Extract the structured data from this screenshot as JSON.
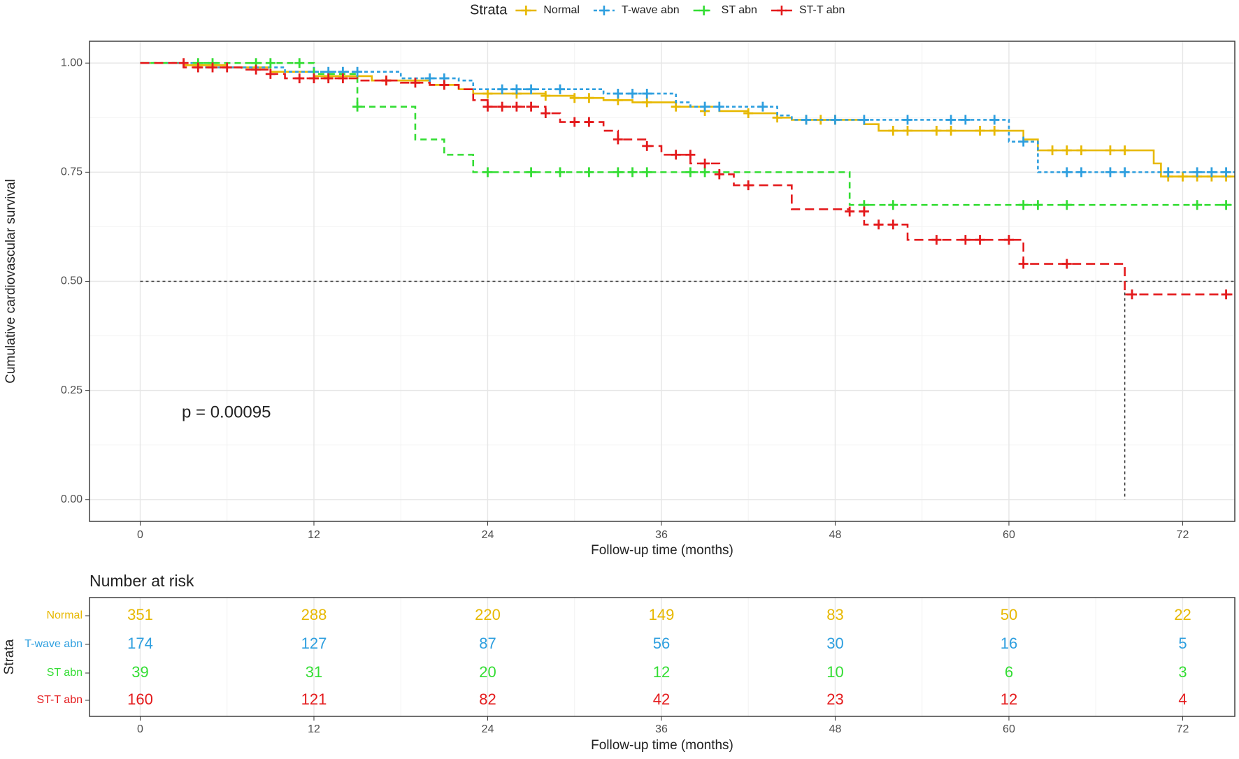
{
  "chart_data": [
    {
      "type": "step",
      "legend_title": "Strata",
      "xlabel": "Follow-up time (months)",
      "ylabel": "Cumulative cardiovascular survival",
      "annotation": "p = 0.00095",
      "xlim": [
        -3.5,
        75.6
      ],
      "xticks": [
        0,
        12,
        24,
        36,
        48,
        60,
        72
      ],
      "ylim": [
        -0.05,
        1.05
      ],
      "yticks": [
        {
          "value": 0,
          "label": "0.00"
        },
        {
          "value": 0.25,
          "label": "0.25"
        },
        {
          "value": 0.5,
          "label": "0.50"
        },
        {
          "value": 0.75,
          "label": "0.75"
        },
        {
          "value": 1,
          "label": "1.00"
        }
      ],
      "grid": true,
      "median_line": {
        "y": 0.5,
        "x": 68
      },
      "series": [
        {
          "name": "Normal",
          "color": "#E7B800",
          "linetype": "solid",
          "x": [
            0,
            3,
            6,
            9,
            12,
            16,
            20,
            22,
            23,
            28,
            30,
            32,
            34,
            37,
            40,
            42,
            44,
            45,
            50,
            51,
            61,
            62,
            70,
            70.5,
            75.6
          ],
          "values": [
            1,
            0.995,
            0.99,
            0.98,
            0.97,
            0.96,
            0.95,
            0.94,
            0.93,
            0.925,
            0.92,
            0.915,
            0.91,
            0.9,
            0.89,
            0.885,
            0.875,
            0.87,
            0.86,
            0.845,
            0.825,
            0.8,
            0.77,
            0.74,
            0.74
          ],
          "censor_x": [
            13,
            17,
            21,
            24,
            26,
            28,
            30,
            31,
            33,
            35,
            37,
            39,
            42,
            44,
            46,
            47,
            48,
            52,
            53,
            55,
            56,
            58,
            59,
            63,
            64,
            65,
            67,
            68,
            71,
            72,
            73,
            74,
            75
          ],
          "censor_values": [
            0.97,
            0.96,
            0.95,
            0.93,
            0.93,
            0.925,
            0.92,
            0.92,
            0.915,
            0.91,
            0.9,
            0.89,
            0.885,
            0.875,
            0.87,
            0.87,
            0.87,
            0.845,
            0.845,
            0.845,
            0.845,
            0.845,
            0.845,
            0.8,
            0.8,
            0.8,
            0.8,
            0.8,
            0.74,
            0.74,
            0.74,
            0.74,
            0.74
          ]
        },
        {
          "name": "T-wave abn",
          "color": "#2E9FDF",
          "linetype": "dotted",
          "x": [
            0,
            4,
            10,
            18,
            22,
            23,
            32,
            37,
            38,
            44,
            45,
            60,
            62,
            75.6
          ],
          "values": [
            1,
            0.99,
            0.98,
            0.965,
            0.96,
            0.94,
            0.93,
            0.91,
            0.9,
            0.88,
            0.87,
            0.82,
            0.75,
            0.75
          ],
          "censor_x": [
            12,
            13,
            14,
            15,
            20,
            21,
            25,
            26,
            27,
            29,
            33,
            34,
            35,
            39,
            40,
            43,
            46,
            48,
            50,
            53,
            56,
            57,
            59,
            61,
            64,
            65,
            67,
            68,
            71,
            73,
            74,
            75
          ],
          "censor_values": [
            0.98,
            0.98,
            0.98,
            0.98,
            0.965,
            0.965,
            0.94,
            0.94,
            0.94,
            0.94,
            0.93,
            0.93,
            0.93,
            0.9,
            0.9,
            0.9,
            0.87,
            0.87,
            0.87,
            0.87,
            0.87,
            0.87,
            0.87,
            0.82,
            0.75,
            0.75,
            0.75,
            0.75,
            0.75,
            0.75,
            0.75,
            0.75
          ]
        },
        {
          "name": "ST abn",
          "color": "#33DD33",
          "linetype": "dashed",
          "x": [
            0,
            12,
            15,
            19,
            21,
            23,
            49,
            75.6
          ],
          "values": [
            1,
            0.975,
            0.9,
            0.825,
            0.79,
            0.75,
            0.675,
            0.675
          ],
          "censor_x": [
            4,
            5,
            8,
            9,
            11,
            15,
            24,
            27,
            29,
            31,
            33,
            34,
            35,
            38,
            39,
            50,
            52,
            61,
            62,
            64,
            73,
            75
          ],
          "censor_values": [
            1,
            1,
            1,
            1,
            1,
            0.9,
            0.75,
            0.75,
            0.75,
            0.75,
            0.75,
            0.75,
            0.75,
            0.75,
            0.75,
            0.675,
            0.675,
            0.675,
            0.675,
            0.675,
            0.675,
            0.675
          ]
        },
        {
          "name": "ST-T abn",
          "color": "#E41A1C",
          "linetype": "longdash",
          "x": [
            0,
            3,
            7,
            9,
            10,
            15,
            18,
            20,
            22,
            23,
            24,
            28,
            29,
            32,
            33,
            35,
            36,
            38,
            40,
            41,
            45,
            49,
            50,
            53,
            61,
            68,
            75.6
          ],
          "values": [
            1,
            0.99,
            0.985,
            0.975,
            0.965,
            0.96,
            0.955,
            0.95,
            0.94,
            0.915,
            0.9,
            0.885,
            0.865,
            0.845,
            0.825,
            0.81,
            0.79,
            0.77,
            0.745,
            0.72,
            0.665,
            0.66,
            0.63,
            0.595,
            0.54,
            0.47,
            0.47
          ],
          "censor_x": [
            3,
            4,
            5,
            6,
            8,
            9,
            11,
            12,
            13,
            14,
            17,
            19,
            21,
            24,
            25,
            26,
            27,
            28,
            30,
            31,
            33,
            35,
            37,
            38,
            39,
            40,
            42,
            49,
            50,
            51,
            52,
            55,
            57,
            58,
            60,
            61,
            64,
            68.5,
            75
          ],
          "censor_values": [
            1,
            0.99,
            0.99,
            0.99,
            0.985,
            0.975,
            0.965,
            0.965,
            0.965,
            0.965,
            0.96,
            0.955,
            0.95,
            0.9,
            0.9,
            0.9,
            0.9,
            0.885,
            0.865,
            0.865,
            0.825,
            0.81,
            0.79,
            0.79,
            0.77,
            0.745,
            0.72,
            0.66,
            0.66,
            0.63,
            0.63,
            0.595,
            0.595,
            0.595,
            0.595,
            0.54,
            0.54,
            0.47,
            0.47
          ]
        }
      ]
    },
    {
      "type": "table",
      "title": "Number at risk",
      "ylabel": "Strata",
      "xlabel": "Follow-up time (months)",
      "xlim": [
        -3.5,
        75.6
      ],
      "xticks": [
        0,
        12,
        24,
        36,
        48,
        60,
        72
      ],
      "rows": [
        {
          "name": "Normal",
          "color": "#E7B800",
          "values": [
            351,
            288,
            220,
            149,
            83,
            50,
            22
          ]
        },
        {
          "name": "T-wave abn",
          "color": "#2E9FDF",
          "values": [
            174,
            127,
            87,
            56,
            30,
            16,
            5
          ]
        },
        {
          "name": "ST abn",
          "color": "#33DD33",
          "values": [
            39,
            31,
            20,
            12,
            10,
            6,
            3
          ]
        },
        {
          "name": "ST-T abn",
          "color": "#E41A1C",
          "values": [
            160,
            121,
            82,
            42,
            23,
            12,
            4
          ]
        }
      ]
    }
  ]
}
